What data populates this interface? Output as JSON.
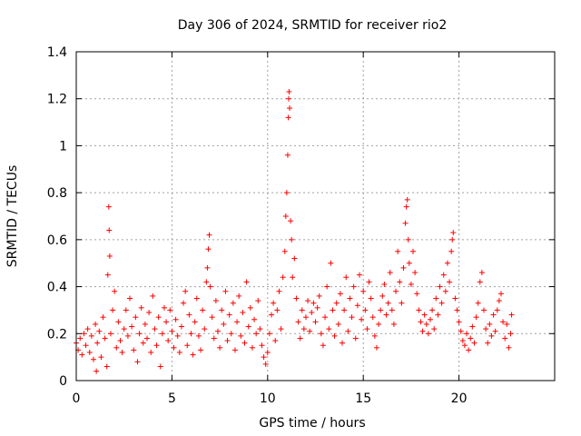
{
  "chart_data": {
    "type": "scatter",
    "title": "Day 306 of 2024, SRMTID for receiver rio2",
    "xlabel": "GPS time / hours",
    "ylabel": "SRMTID / TECUs",
    "xlim": [
      0,
      25
    ],
    "ylim": [
      0,
      1.4
    ],
    "xticks": [
      0,
      5,
      10,
      15,
      20
    ],
    "xtick_labels": [
      "0",
      "5",
      "10",
      "15",
      "20"
    ],
    "yticks": [
      0,
      0.2,
      0.4,
      0.6,
      0.8,
      1.0,
      1.2,
      1.4
    ],
    "ytick_labels": [
      "0",
      "0.2",
      "0.4",
      "0.6",
      "0.8",
      "1",
      "1.2",
      "1.4"
    ],
    "grid": true,
    "marker": "+",
    "color": "#ff0000",
    "series": [
      {
        "name": "rio2",
        "points": [
          [
            0.0,
            0.16
          ],
          [
            0.1,
            0.13
          ],
          [
            0.2,
            0.18
          ],
          [
            0.3,
            0.11
          ],
          [
            0.4,
            0.2
          ],
          [
            0.5,
            0.15
          ],
          [
            0.6,
            0.22
          ],
          [
            0.7,
            0.12
          ],
          [
            0.8,
            0.19
          ],
          [
            0.9,
            0.09
          ],
          [
            1.0,
            0.24
          ],
          [
            1.05,
            0.04
          ],
          [
            1.1,
            0.16
          ],
          [
            1.2,
            0.21
          ],
          [
            1.3,
            0.1
          ],
          [
            1.4,
            0.27
          ],
          [
            1.5,
            0.18
          ],
          [
            1.6,
            0.06
          ],
          [
            1.65,
            0.45
          ],
          [
            1.7,
            0.74
          ],
          [
            1.72,
            0.64
          ],
          [
            1.75,
            0.53
          ],
          [
            1.8,
            0.2
          ],
          [
            1.9,
            0.3
          ],
          [
            2.0,
            0.38
          ],
          [
            2.1,
            0.14
          ],
          [
            2.2,
            0.25
          ],
          [
            2.3,
            0.17
          ],
          [
            2.4,
            0.12
          ],
          [
            2.5,
            0.22
          ],
          [
            2.6,
            0.3
          ],
          [
            2.7,
            0.19
          ],
          [
            2.8,
            0.35
          ],
          [
            2.9,
            0.23
          ],
          [
            3.0,
            0.13
          ],
          [
            3.1,
            0.27
          ],
          [
            3.2,
            0.08
          ],
          [
            3.3,
            0.2
          ],
          [
            3.4,
            0.31
          ],
          [
            3.5,
            0.16
          ],
          [
            3.6,
            0.24
          ],
          [
            3.7,
            0.18
          ],
          [
            3.8,
            0.29
          ],
          [
            3.9,
            0.12
          ],
          [
            4.0,
            0.36
          ],
          [
            4.1,
            0.22
          ],
          [
            4.2,
            0.15
          ],
          [
            4.3,
            0.27
          ],
          [
            4.4,
            0.06
          ],
          [
            4.5,
            0.2
          ],
          [
            4.6,
            0.31
          ],
          [
            4.7,
            0.25
          ],
          [
            4.8,
            0.17
          ],
          [
            4.9,
            0.3
          ],
          [
            5.0,
            0.21
          ],
          [
            5.1,
            0.14
          ],
          [
            5.2,
            0.26
          ],
          [
            5.3,
            0.19
          ],
          [
            5.4,
            0.12
          ],
          [
            5.5,
            0.23
          ],
          [
            5.6,
            0.33
          ],
          [
            5.7,
            0.38
          ],
          [
            5.8,
            0.15
          ],
          [
            5.9,
            0.28
          ],
          [
            6.0,
            0.2
          ],
          [
            6.1,
            0.11
          ],
          [
            6.2,
            0.25
          ],
          [
            6.3,
            0.35
          ],
          [
            6.4,
            0.19
          ],
          [
            6.5,
            0.13
          ],
          [
            6.6,
            0.3
          ],
          [
            6.7,
            0.22
          ],
          [
            6.8,
            0.42
          ],
          [
            6.85,
            0.48
          ],
          [
            6.9,
            0.56
          ],
          [
            6.95,
            0.62
          ],
          [
            7.0,
            0.4
          ],
          [
            7.1,
            0.27
          ],
          [
            7.2,
            0.18
          ],
          [
            7.3,
            0.34
          ],
          [
            7.4,
            0.21
          ],
          [
            7.5,
            0.14
          ],
          [
            7.6,
            0.3
          ],
          [
            7.7,
            0.24
          ],
          [
            7.8,
            0.38
          ],
          [
            7.9,
            0.17
          ],
          [
            8.0,
            0.28
          ],
          [
            8.1,
            0.2
          ],
          [
            8.2,
            0.33
          ],
          [
            8.3,
            0.13
          ],
          [
            8.4,
            0.25
          ],
          [
            8.5,
            0.36
          ],
          [
            8.6,
            0.19
          ],
          [
            8.7,
            0.29
          ],
          [
            8.8,
            0.16
          ],
          [
            8.9,
            0.42
          ],
          [
            9.0,
            0.23
          ],
          [
            9.1,
            0.31
          ],
          [
            9.2,
            0.14
          ],
          [
            9.3,
            0.26
          ],
          [
            9.4,
            0.2
          ],
          [
            9.5,
            0.34
          ],
          [
            9.6,
            0.22
          ],
          [
            9.7,
            0.15
          ],
          [
            9.8,
            0.1
          ],
          [
            9.9,
            0.07
          ],
          [
            10.0,
            0.12
          ],
          [
            10.1,
            0.2
          ],
          [
            10.2,
            0.28
          ],
          [
            10.3,
            0.33
          ],
          [
            10.4,
            0.17
          ],
          [
            10.5,
            0.3
          ],
          [
            10.6,
            0.38
          ],
          [
            10.7,
            0.22
          ],
          [
            10.8,
            0.44
          ],
          [
            10.9,
            0.55
          ],
          [
            10.95,
            0.7
          ],
          [
            11.0,
            0.8
          ],
          [
            11.05,
            0.96
          ],
          [
            11.08,
            1.12
          ],
          [
            11.1,
            1.2
          ],
          [
            11.12,
            1.23
          ],
          [
            11.15,
            1.16
          ],
          [
            11.2,
            0.68
          ],
          [
            11.25,
            0.6
          ],
          [
            11.3,
            0.44
          ],
          [
            11.4,
            0.52
          ],
          [
            11.5,
            0.35
          ],
          [
            11.6,
            0.25
          ],
          [
            11.7,
            0.18
          ],
          [
            11.8,
            0.3
          ],
          [
            11.9,
            0.22
          ],
          [
            12.0,
            0.27
          ],
          [
            12.1,
            0.34
          ],
          [
            12.2,
            0.21
          ],
          [
            12.3,
            0.29
          ],
          [
            12.4,
            0.33
          ],
          [
            12.5,
            0.25
          ],
          [
            12.6,
            0.31
          ],
          [
            12.7,
            0.36
          ],
          [
            12.8,
            0.2
          ],
          [
            12.9,
            0.15
          ],
          [
            13.0,
            0.27
          ],
          [
            13.1,
            0.4
          ],
          [
            13.2,
            0.22
          ],
          [
            13.3,
            0.5
          ],
          [
            13.4,
            0.3
          ],
          [
            13.5,
            0.19
          ],
          [
            13.6,
            0.33
          ],
          [
            13.7,
            0.24
          ],
          [
            13.8,
            0.37
          ],
          [
            13.9,
            0.16
          ],
          [
            14.0,
            0.3
          ],
          [
            14.1,
            0.44
          ],
          [
            14.2,
            0.21
          ],
          [
            14.3,
            0.35
          ],
          [
            14.4,
            0.27
          ],
          [
            14.5,
            0.4
          ],
          [
            14.6,
            0.18
          ],
          [
            14.7,
            0.32
          ],
          [
            14.8,
            0.45
          ],
          [
            14.9,
            0.26
          ],
          [
            15.0,
            0.38
          ],
          [
            15.1,
            0.3
          ],
          [
            15.2,
            0.22
          ],
          [
            15.3,
            0.42
          ],
          [
            15.4,
            0.35
          ],
          [
            15.5,
            0.27
          ],
          [
            15.6,
            0.19
          ],
          [
            15.7,
            0.14
          ],
          [
            15.8,
            0.24
          ],
          [
            15.9,
            0.3
          ],
          [
            16.0,
            0.36
          ],
          [
            16.1,
            0.41
          ],
          [
            16.2,
            0.28
          ],
          [
            16.3,
            0.33
          ],
          [
            16.4,
            0.46
          ],
          [
            16.5,
            0.3
          ],
          [
            16.6,
            0.24
          ],
          [
            16.7,
            0.38
          ],
          [
            16.8,
            0.55
          ],
          [
            16.9,
            0.42
          ],
          [
            17.0,
            0.33
          ],
          [
            17.1,
            0.48
          ],
          [
            17.2,
            0.67
          ],
          [
            17.25,
            0.74
          ],
          [
            17.3,
            0.77
          ],
          [
            17.35,
            0.6
          ],
          [
            17.4,
            0.5
          ],
          [
            17.5,
            0.41
          ],
          [
            17.6,
            0.55
          ],
          [
            17.7,
            0.46
          ],
          [
            17.8,
            0.37
          ],
          [
            17.9,
            0.3
          ],
          [
            18.0,
            0.25
          ],
          [
            18.1,
            0.21
          ],
          [
            18.2,
            0.28
          ],
          [
            18.3,
            0.24
          ],
          [
            18.4,
            0.2
          ],
          [
            18.5,
            0.26
          ],
          [
            18.6,
            0.3
          ],
          [
            18.7,
            0.22
          ],
          [
            18.8,
            0.35
          ],
          [
            18.9,
            0.28
          ],
          [
            19.0,
            0.4
          ],
          [
            19.1,
            0.33
          ],
          [
            19.2,
            0.45
          ],
          [
            19.3,
            0.38
          ],
          [
            19.4,
            0.5
          ],
          [
            19.5,
            0.42
          ],
          [
            19.6,
            0.55
          ],
          [
            19.65,
            0.6
          ],
          [
            19.7,
            0.63
          ],
          [
            19.8,
            0.35
          ],
          [
            19.9,
            0.3
          ],
          [
            20.0,
            0.25
          ],
          [
            20.1,
            0.21
          ],
          [
            20.2,
            0.17
          ],
          [
            20.3,
            0.15
          ],
          [
            20.4,
            0.2
          ],
          [
            20.5,
            0.13
          ],
          [
            20.6,
            0.18
          ],
          [
            20.7,
            0.23
          ],
          [
            20.8,
            0.16
          ],
          [
            20.9,
            0.27
          ],
          [
            21.0,
            0.33
          ],
          [
            21.1,
            0.42
          ],
          [
            21.2,
            0.46
          ],
          [
            21.3,
            0.3
          ],
          [
            21.4,
            0.22
          ],
          [
            21.5,
            0.16
          ],
          [
            21.6,
            0.24
          ],
          [
            21.7,
            0.19
          ],
          [
            21.8,
            0.28
          ],
          [
            21.9,
            0.21
          ],
          [
            22.0,
            0.3
          ],
          [
            22.1,
            0.34
          ],
          [
            22.2,
            0.37
          ],
          [
            22.3,
            0.25
          ],
          [
            22.4,
            0.18
          ],
          [
            22.5,
            0.24
          ],
          [
            22.6,
            0.14
          ],
          [
            22.7,
            0.2
          ],
          [
            22.75,
            0.28
          ]
        ]
      }
    ]
  }
}
